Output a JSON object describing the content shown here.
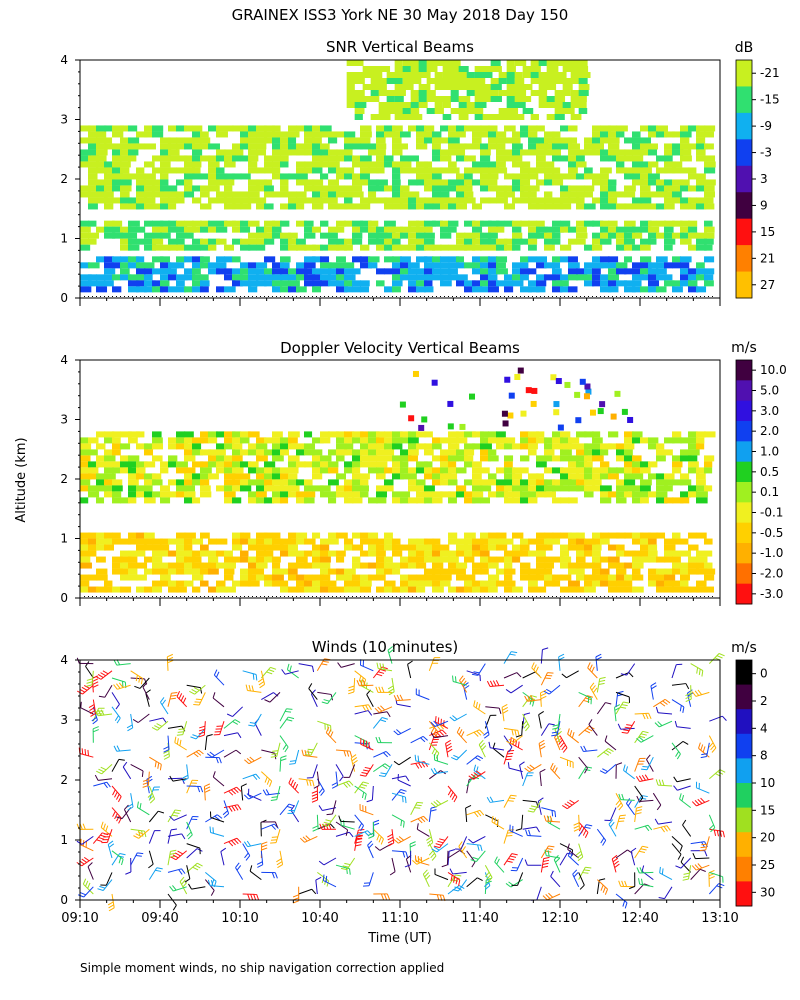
{
  "title": "GRAINEX ISS3 York NE  30 May 2018 Day 150",
  "footnote": "Simple moment winds, no ship navigation correction applied",
  "shared_axes": {
    "ylabel": "Altitude (km)",
    "xlabel": "Time (UT)",
    "ylim": [
      0,
      4
    ],
    "y_ticks": [
      "0",
      "1",
      "2",
      "3",
      "4"
    ],
    "x_tick_labels": [
      "09:10",
      "09:40",
      "10:10",
      "10:40",
      "11:10",
      "11:40",
      "12:10",
      "12:40",
      "13:10"
    ]
  },
  "chart_data": [
    {
      "type": "heatmap",
      "title": "SNR Vertical Beams",
      "unit": "dB",
      "xlim": [
        "09:10",
        "13:10"
      ],
      "ylim": [
        0,
        4
      ],
      "colorbar_labels": [
        "-21",
        "-15",
        "-9",
        "-3",
        "3",
        "9",
        "15",
        "21",
        "27"
      ],
      "colors": [
        "#c8f020",
        "#30e070",
        "#10b0f0",
        "#1040f0",
        "#5010b0",
        "#400040",
        "#ff1010",
        "#ff8000",
        "#ffc000"
      ],
      "layers": [
        {
          "name": "upper",
          "range_km": [
            1.5,
            2.9
          ],
          "typical_db": -18
        },
        {
          "name": "middle",
          "range_km": [
            0.8,
            1.3
          ],
          "typical_db": -15
        },
        {
          "name": "boundary",
          "range_km": [
            0.1,
            0.7
          ],
          "typical_db": -6
        },
        {
          "name": "top",
          "range_km": [
            3.0,
            4.0
          ],
          "typical_db": -19,
          "time_span": [
            "10:50",
            "12:20"
          ]
        }
      ]
    },
    {
      "type": "heatmap",
      "title": "Doppler Velocity Vertical Beams",
      "unit": "m/s",
      "xlim": [
        "09:10",
        "13:10"
      ],
      "ylim": [
        0,
        4
      ],
      "colorbar_labels": [
        "10.0",
        "5.0",
        "3.0",
        "2.0",
        "1.0",
        "0.5",
        "0.1",
        "-0.1",
        "-0.5",
        "-1.0",
        "-2.0",
        "-3.0"
      ],
      "colors": [
        "#400040",
        "#5010b0",
        "#3010e0",
        "#1040f0",
        "#10a0f0",
        "#20d020",
        "#a0f020",
        "#f0f020",
        "#ffd000",
        "#ffb000",
        "#ff7000",
        "#ff1010"
      ],
      "layers": [
        {
          "name": "upper",
          "range_km": [
            1.6,
            2.8
          ],
          "typical_ms": 0.0
        },
        {
          "name": "boundary",
          "range_km": [
            0.1,
            1.1
          ],
          "typical_ms": -0.4
        }
      ]
    },
    {
      "type": "scatter",
      "title": "Winds (10 minutes)",
      "unit": "m/s",
      "xlim": [
        "09:10",
        "13:10"
      ],
      "ylim": [
        0,
        4
      ],
      "colorbar_labels": [
        "0",
        "2",
        "4",
        "8",
        "10",
        "15",
        "20",
        "25",
        "30"
      ],
      "colors": [
        "#000000",
        "#400040",
        "#2010c0",
        "#1040f0",
        "#10a0f0",
        "#20d060",
        "#a0e020",
        "#ffb000",
        "#ff8000",
        "#ff1010"
      ]
    }
  ]
}
